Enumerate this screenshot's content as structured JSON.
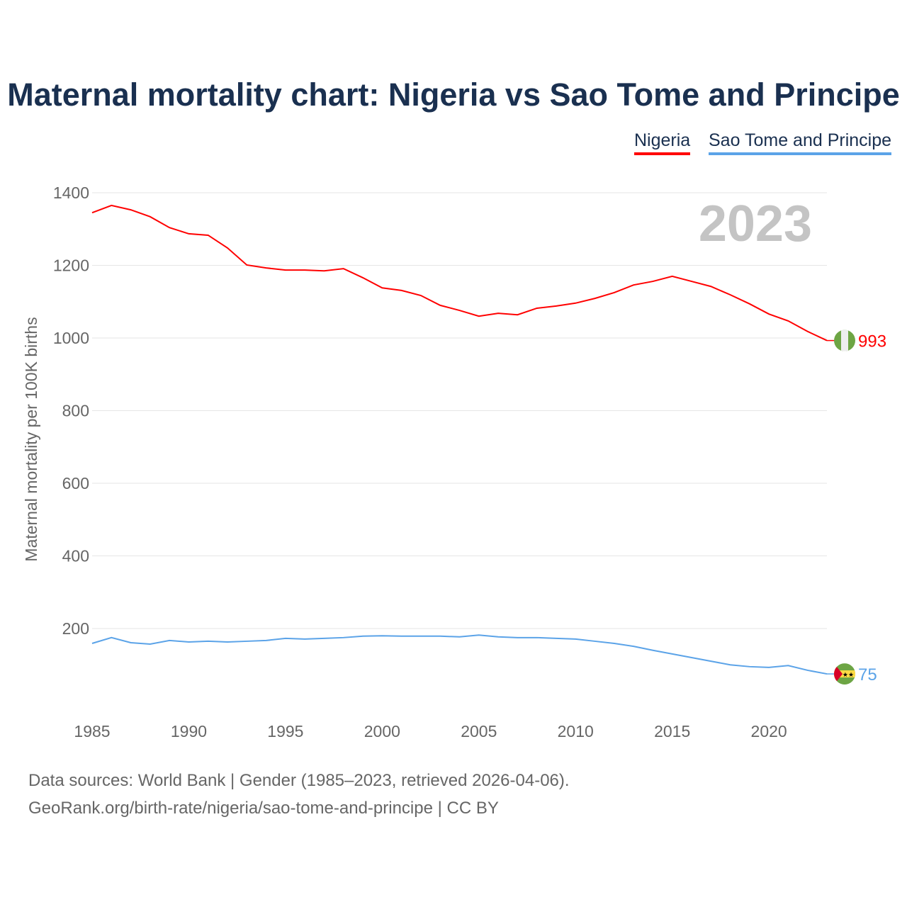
{
  "chart_data": {
    "type": "line",
    "title": "Maternal mortality chart: Nigeria vs Sao Tome and Principe",
    "ylabel": "Maternal mortality per 100K births",
    "xlabel": "",
    "ylim": [
      0,
      1400
    ],
    "xlim": [
      1985,
      2023
    ],
    "yticks": [
      200,
      400,
      600,
      800,
      1000,
      1200,
      1400
    ],
    "xticks": [
      1985,
      1990,
      1995,
      2000,
      2005,
      2010,
      2015,
      2020
    ],
    "grid": true,
    "legend_position": "top-right",
    "year_label": "2023",
    "x": [
      1985,
      1986,
      1987,
      1988,
      1989,
      1990,
      1991,
      1992,
      1993,
      1994,
      1995,
      1996,
      1997,
      1998,
      1999,
      2000,
      2001,
      2002,
      2003,
      2004,
      2005,
      2006,
      2007,
      2008,
      2009,
      2010,
      2011,
      2012,
      2013,
      2014,
      2015,
      2016,
      2017,
      2018,
      2019,
      2020,
      2021,
      2022,
      2023
    ],
    "series": [
      {
        "name": "Nigeria",
        "color": "#ff0000",
        "end_label": "993",
        "values": [
          1345,
          1365,
          1353,
          1334,
          1304,
          1287,
          1283,
          1248,
          1201,
          1193,
          1187,
          1187,
          1185,
          1191,
          1166,
          1138,
          1131,
          1117,
          1090,
          1076,
          1060,
          1068,
          1064,
          1082,
          1088,
          1096,
          1109,
          1125,
          1146,
          1156,
          1170,
          1156,
          1142,
          1119,
          1094,
          1066,
          1047,
          1018,
          993
        ]
      },
      {
        "name": "Sao Tome and Principe",
        "color": "#5ba3e8",
        "end_label": "75",
        "values": [
          159,
          175,
          161,
          157,
          167,
          163,
          165,
          163,
          165,
          167,
          173,
          171,
          173,
          175,
          179,
          180,
          179,
          179,
          179,
          177,
          182,
          177,
          175,
          175,
          173,
          171,
          165,
          159,
          151,
          140,
          130,
          120,
          110,
          100,
          95,
          93,
          98,
          85,
          75
        ]
      }
    ]
  },
  "footer": {
    "line1": "Data sources: World Bank | Gender (1985–2023, retrieved 2026-04-06).",
    "line2": "GeoRank.org/birth-rate/nigeria/sao-tome-and-principe | CC BY"
  }
}
